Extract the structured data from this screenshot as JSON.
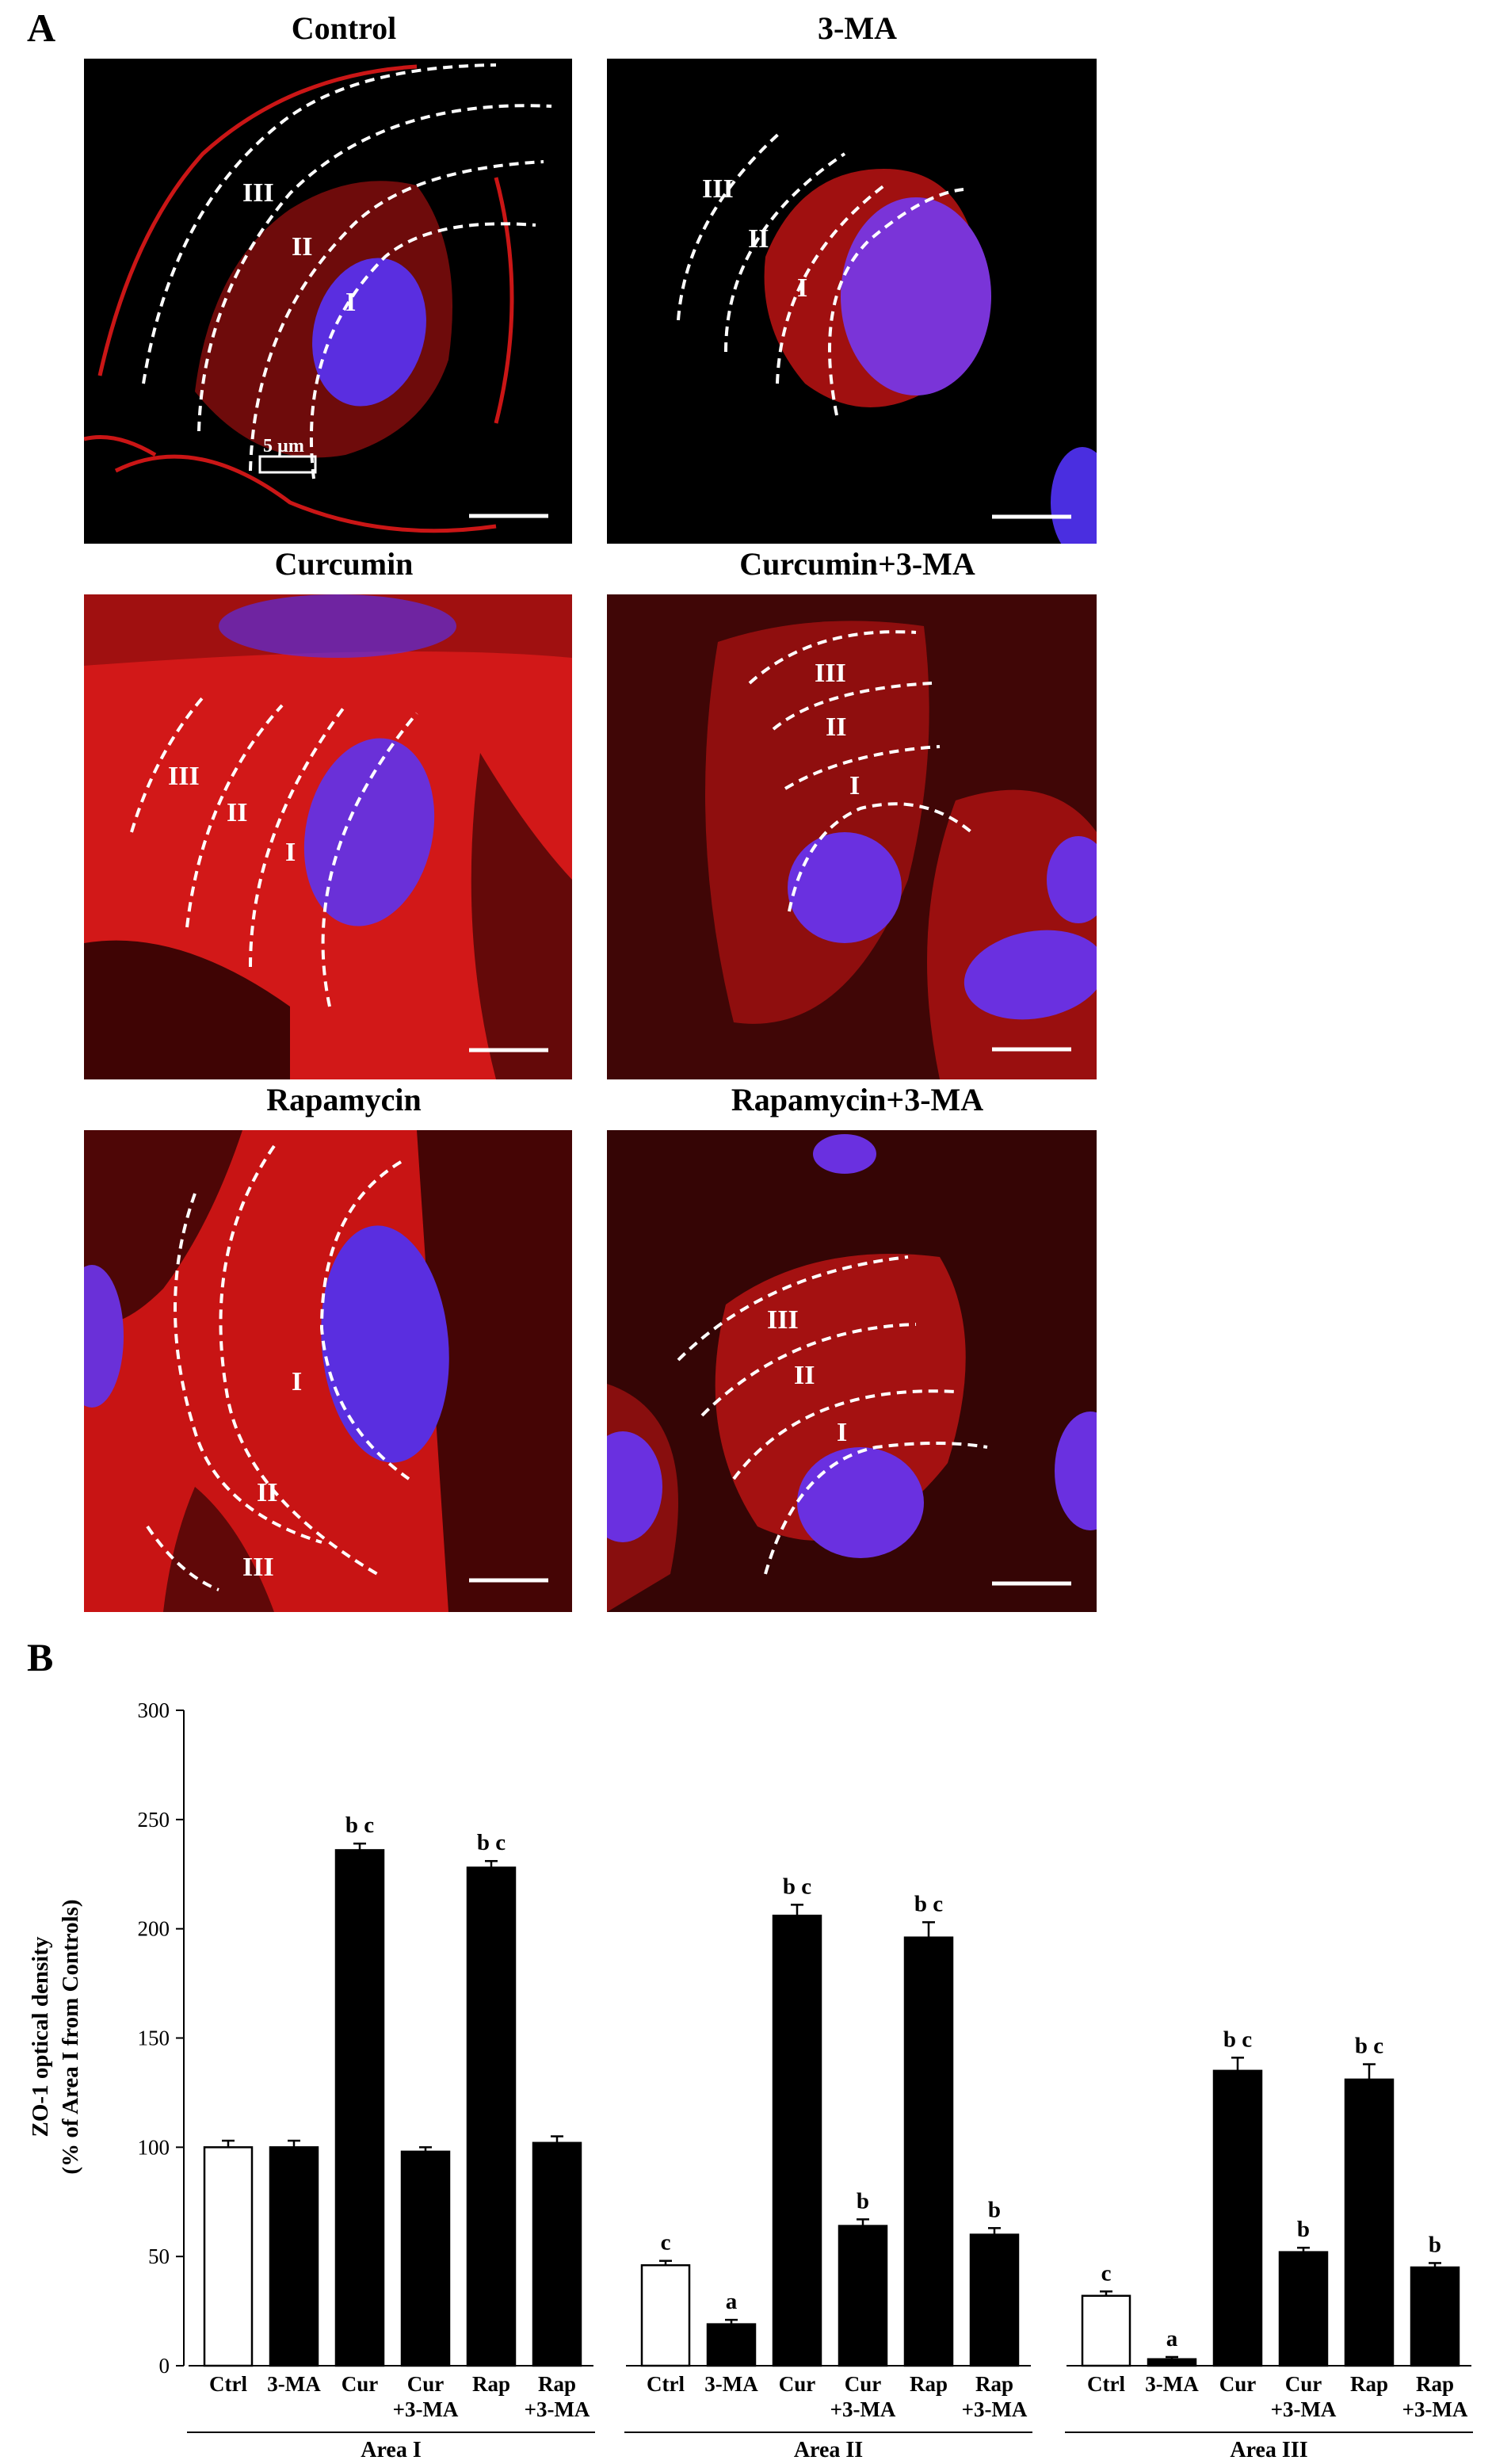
{
  "panel_a": {
    "letter": "A",
    "panels": [
      {
        "title": "Control",
        "zone_labels": [
          "I",
          "II",
          "III"
        ],
        "scale_label": "5 µm"
      },
      {
        "title": "3-MA",
        "zone_labels": [
          "I",
          "II",
          "III"
        ]
      },
      {
        "title": "Curcumin",
        "zone_labels": [
          "I",
          "II",
          "III"
        ]
      },
      {
        "title": "Curcumin+3-MA",
        "zone_labels": [
          "I",
          "II",
          "III"
        ]
      },
      {
        "title": "Rapamycin",
        "zone_labels": [
          "I",
          "II",
          "III"
        ]
      },
      {
        "title": "Rapamycin+3-MA",
        "zone_labels": [
          "I",
          "II",
          "III"
        ]
      }
    ],
    "colors": {
      "stain": "#e01818",
      "nucleus": "#5a2ee0",
      "background": "#000000",
      "zone_line": "#ffffff"
    }
  },
  "panel_b": {
    "letter": "B"
  },
  "chart_data": {
    "type": "bar",
    "ylabel_line1": "ZO-1 optical density",
    "ylabel_line2": "(% of Area I from Controls)",
    "ylim": [
      0,
      300
    ],
    "yticks": [
      0,
      50,
      100,
      150,
      200,
      250,
      300
    ],
    "categories": [
      "Ctrl",
      "3-MA",
      "Cur",
      "Cur\n+3-MA",
      "Rap",
      "Rap\n+3-MA"
    ],
    "groups": [
      {
        "name": "Area I",
        "values": [
          100,
          100,
          236,
          98,
          228,
          102
        ],
        "errors": [
          3,
          3,
          3,
          2,
          3,
          3
        ],
        "annotations": [
          "",
          "",
          "b c",
          "",
          "b c",
          ""
        ]
      },
      {
        "name": "Area II",
        "values": [
          46,
          19,
          206,
          64,
          196,
          60
        ],
        "errors": [
          2,
          2,
          5,
          3,
          7,
          3
        ],
        "annotations": [
          "c",
          "a",
          "b c",
          "b",
          "b c",
          "b"
        ]
      },
      {
        "name": "Area III",
        "values": [
          32,
          3,
          135,
          52,
          131,
          45
        ],
        "errors": [
          2,
          1,
          6,
          2,
          7,
          2
        ],
        "annotations": [
          "c",
          "a",
          "b c",
          "b",
          "b c",
          "b"
        ]
      }
    ],
    "bar_fill": [
      "#ffffff",
      "#000000",
      "#000000",
      "#000000",
      "#000000",
      "#000000"
    ]
  }
}
